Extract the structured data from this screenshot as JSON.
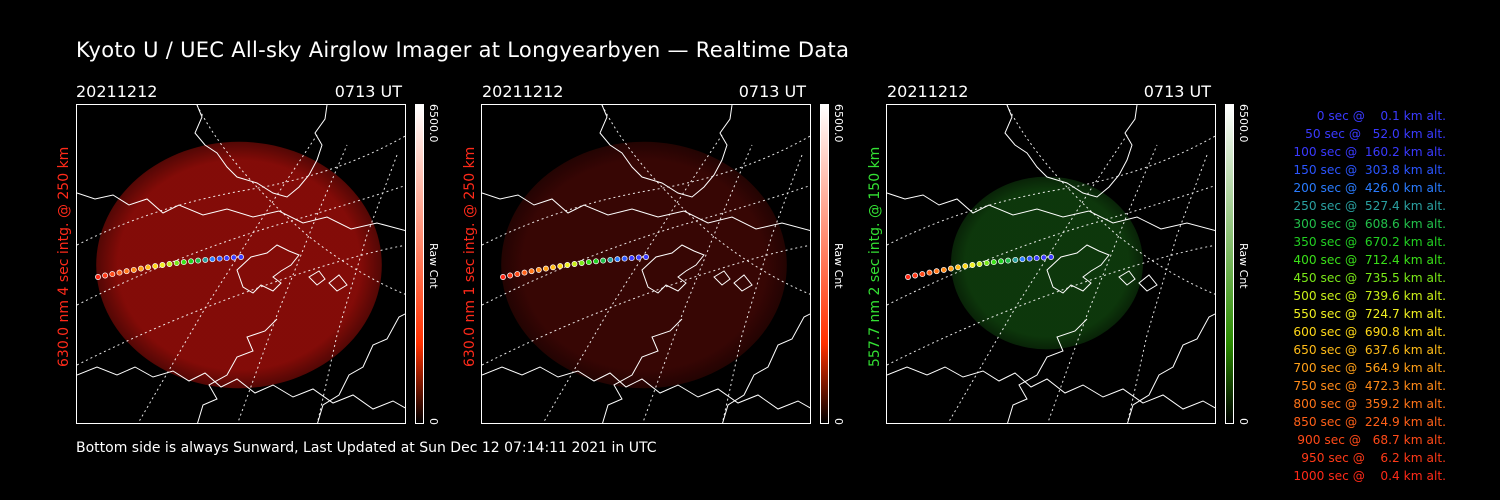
{
  "title": "Kyoto U / UEC All-sky Airglow Imager at Longyearbyen — Realtime Data",
  "footer": "Bottom side is always Sunward, Last Updated at Sun Dec 12 07:14:11 2021 in UTC",
  "panels": [
    {
      "date": "20211212",
      "time": "0713 UT",
      "side_label": "630.0 nm 4 sec intg. @ 250 km",
      "label_color": "#ff2a1a",
      "colorbar": {
        "max": "6500.0",
        "unit": "Raw Cnt",
        "min": "0",
        "bottom_color": "#ff3000",
        "top_color": "#ffffff"
      },
      "glow_color": "#8a0c08",
      "glow_opacity": 0.95
    },
    {
      "date": "20211212",
      "time": "0713 UT",
      "side_label": "630.0 nm 1 sec intg. @ 250 km",
      "label_color": "#ff2a1a",
      "colorbar": {
        "max": "6500.0",
        "unit": "Raw Cnt",
        "min": "0",
        "bottom_color": "#ff3000",
        "top_color": "#ffffff"
      },
      "glow_color": "#3a0604",
      "glow_opacity": 0.95
    },
    {
      "date": "20211212",
      "time": "0713 UT",
      "side_label": "557.7 nm 2 sec intg. @ 150 km",
      "label_color": "#33e033",
      "colorbar": {
        "max": "6500.0",
        "unit": "Raw Cnt",
        "min": "0",
        "bottom_color": "#2a8a00",
        "top_color": "#ffffff"
      },
      "glow_color": "#0e3a0c",
      "glow_opacity": 0.95
    }
  ],
  "legend": [
    {
      "text": "0 sec @    0.1 km alt.",
      "color": "#3a3aff"
    },
    {
      "text": "50 sec @   52.0 km alt.",
      "color": "#3a3aff"
    },
    {
      "text": "100 sec @  160.2 km alt.",
      "color": "#3a3aff"
    },
    {
      "text": "150 sec @  303.8 km alt.",
      "color": "#2b55ff"
    },
    {
      "text": "200 sec @  426.0 km alt.",
      "color": "#2a7cff"
    },
    {
      "text": "250 sec @  527.4 km alt.",
      "color": "#2aa0a0"
    },
    {
      "text": "300 sec @  608.6 km alt.",
      "color": "#22c04a"
    },
    {
      "text": "350 sec @  670.2 km alt.",
      "color": "#22d022"
    },
    {
      "text": "400 sec @  712.4 km alt.",
      "color": "#3ae018"
    },
    {
      "text": "450 sec @  735.5 km alt.",
      "color": "#7ae818"
    },
    {
      "text": "500 sec @  739.6 km alt.",
      "color": "#c8ee18"
    },
    {
      "text": "550 sec @  724.7 km alt.",
      "color": "#f0f020"
    },
    {
      "text": "600 sec @  690.8 km alt.",
      "color": "#ffd818"
    },
    {
      "text": "650 sec @  637.6 km alt.",
      "color": "#ffbc18"
    },
    {
      "text": "700 sec @  564.9 km alt.",
      "color": "#ffa018"
    },
    {
      "text": "750 sec @  472.3 km alt.",
      "color": "#ff8a18"
    },
    {
      "text": "800 sec @  359.2 km alt.",
      "color": "#ff7418"
    },
    {
      "text": "850 sec @  224.9 km alt.",
      "color": "#ff6018"
    },
    {
      "text": "900 sec @   68.7 km alt.",
      "color": "#ff4a18"
    },
    {
      "text": "950 sec @    6.2 km alt.",
      "color": "#ff3a18"
    },
    {
      "text": "1000 sec @    0.4 km alt.",
      "color": "#ff2a18"
    }
  ]
}
